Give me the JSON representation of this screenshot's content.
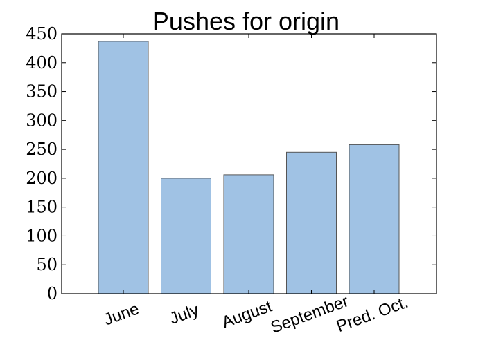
{
  "chart_data": {
    "type": "bar",
    "title": "Pushes for origin",
    "xlabel": "",
    "ylabel": "",
    "categories": [
      "June",
      "July",
      "August",
      "September",
      "Pred. Oct."
    ],
    "values": [
      437,
      200,
      206,
      245,
      258
    ],
    "ylim": [
      0,
      450
    ],
    "yticks": [
      "0",
      "50",
      "100",
      "150",
      "200",
      "250",
      "300",
      "350",
      "400",
      "450"
    ],
    "bar_color": "#a0c2e4",
    "bar_edge_color": "#555555",
    "xtick_rotation_deg": 20,
    "grid": false,
    "legend": "none"
  }
}
